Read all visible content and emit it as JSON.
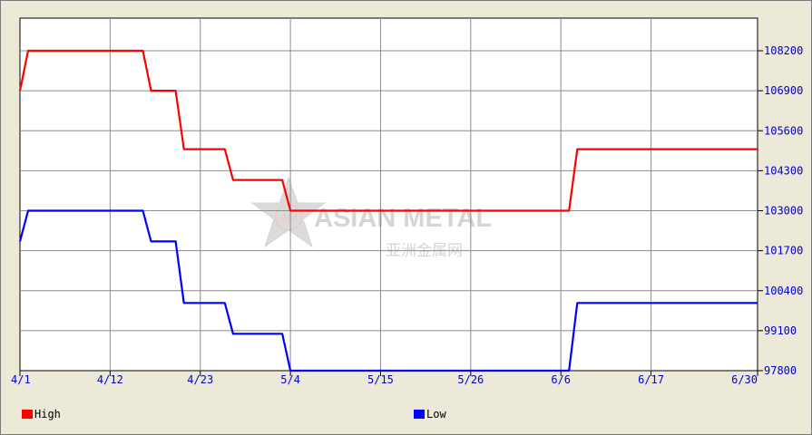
{
  "chart_data": {
    "type": "line",
    "x": [
      "4/1",
      "4/2",
      "4/3",
      "4/4",
      "4/5",
      "4/6",
      "4/7",
      "4/8",
      "4/9",
      "4/10",
      "4/11",
      "4/12",
      "4/13",
      "4/14",
      "4/15",
      "4/16",
      "4/17",
      "4/18",
      "4/19",
      "4/20",
      "4/21",
      "4/22",
      "4/23",
      "4/24",
      "4/25",
      "4/26",
      "4/27",
      "4/28",
      "4/29",
      "4/30",
      "5/1",
      "5/2",
      "5/3",
      "5/4",
      "5/5",
      "5/6",
      "5/7",
      "5/8",
      "5/9",
      "5/10",
      "5/11",
      "5/12",
      "5/13",
      "5/14",
      "5/15",
      "5/16",
      "5/17",
      "5/18",
      "5/19",
      "5/20",
      "5/21",
      "5/22",
      "5/23",
      "5/24",
      "5/25",
      "5/26",
      "5/27",
      "5/28",
      "5/29",
      "5/30",
      "5/31",
      "6/1",
      "6/2",
      "6/3",
      "6/4",
      "6/5",
      "6/6",
      "6/7",
      "6/8",
      "6/9",
      "6/10",
      "6/11",
      "6/12",
      "6/13",
      "6/14",
      "6/15",
      "6/16",
      "6/17",
      "6/18",
      "6/19",
      "6/20",
      "6/21",
      "6/22",
      "6/23",
      "6/24",
      "6/25",
      "6/26",
      "6/27",
      "6/28",
      "6/29",
      "6/30"
    ],
    "series": [
      {
        "name": "High",
        "color": "#ff0000",
        "values": [
          106900,
          108200,
          108200,
          108200,
          108200,
          108200,
          108200,
          108200,
          108200,
          108200,
          108200,
          108200,
          108200,
          108200,
          108200,
          108200,
          106900,
          106900,
          106900,
          106900,
          105000,
          105000,
          105000,
          105000,
          105000,
          105000,
          104000,
          104000,
          104000,
          104000,
          104000,
          104000,
          104000,
          103000,
          103000,
          103000,
          103000,
          103000,
          103000,
          103000,
          103000,
          103000,
          103000,
          103000,
          103000,
          103000,
          103000,
          103000,
          103000,
          103000,
          103000,
          103000,
          103000,
          103000,
          103000,
          103000,
          103000,
          103000,
          103000,
          103000,
          103000,
          103000,
          103000,
          103000,
          103000,
          103000,
          103000,
          103000,
          105000,
          105000,
          105000,
          105000,
          105000,
          105000,
          105000,
          105000,
          105000,
          105000,
          105000,
          105000,
          105000,
          105000,
          105000,
          105000,
          105000,
          105000,
          105000,
          105000,
          105000,
          105000,
          105000
        ]
      },
      {
        "name": "Low",
        "color": "#0000ff",
        "values": [
          102000,
          103000,
          103000,
          103000,
          103000,
          103000,
          103000,
          103000,
          103000,
          103000,
          103000,
          103000,
          103000,
          103000,
          103000,
          103000,
          102000,
          102000,
          102000,
          102000,
          100000,
          100000,
          100000,
          100000,
          100000,
          100000,
          99000,
          99000,
          99000,
          99000,
          99000,
          99000,
          99000,
          97800,
          97800,
          97800,
          97800,
          97800,
          97800,
          97800,
          97800,
          97800,
          97800,
          97800,
          97800,
          97800,
          97800,
          97800,
          97800,
          97800,
          97800,
          97800,
          97800,
          97800,
          97800,
          97800,
          97800,
          97800,
          97800,
          97800,
          97800,
          97800,
          97800,
          97800,
          97800,
          97800,
          97800,
          97800,
          100000,
          100000,
          100000,
          100000,
          100000,
          100000,
          100000,
          100000,
          100000,
          100000,
          100000,
          100000,
          100000,
          100000,
          100000,
          100000,
          100000,
          100000,
          100000,
          100000,
          100000,
          100000,
          100000
        ]
      }
    ],
    "x_tick_labels": [
      "4/1",
      "4/12",
      "4/23",
      "5/4",
      "5/15",
      "5/26",
      "6/6",
      "6/17",
      "6/30"
    ],
    "y_tick_labels": [
      "108200",
      "106900",
      "105600",
      "104300",
      "103000",
      "101700",
      "100400",
      "99100",
      "97800"
    ],
    "ylim": [
      97800,
      108200
    ],
    "grid": true,
    "legend_position": "bottom",
    "axis_label_color": "#0000cc"
  },
  "legend": {
    "high_label": "High",
    "low_label": "Low"
  },
  "watermark": {
    "logo_text": "AM",
    "brand_text": "ASIAN METAL",
    "brand_cn": "亚洲金属网"
  }
}
